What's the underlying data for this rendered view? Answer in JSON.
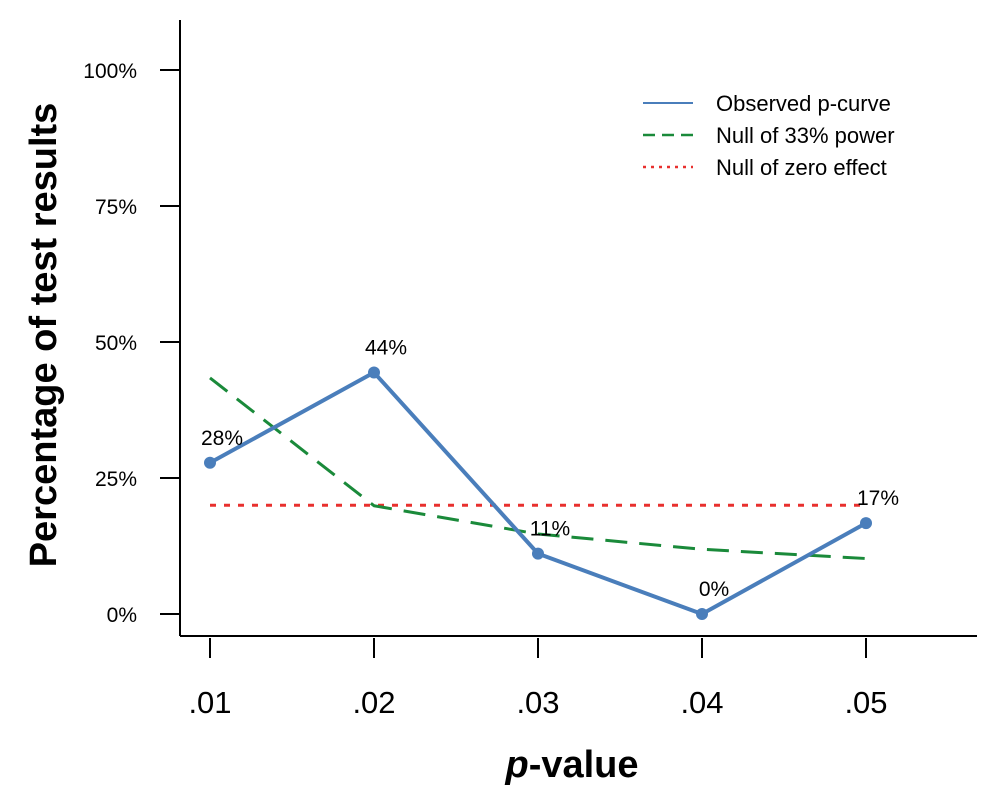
{
  "chart_data": {
    "type": "line",
    "title": "",
    "xlabel_italic": "p",
    "xlabel_rest": "-value",
    "ylabel": "Percentage of test results",
    "x": [
      0.01,
      0.02,
      0.03,
      0.04,
      0.05
    ],
    "x_tick_labels": [
      ".01",
      ".02",
      ".03",
      ".04",
      ".05"
    ],
    "y_ticks": [
      0,
      25,
      50,
      75,
      100
    ],
    "y_tick_labels": [
      "0%",
      "25%",
      "50%",
      "75%",
      "100%"
    ],
    "ylim": [
      0,
      100
    ],
    "grid": false,
    "legend_position": "top-right",
    "series": [
      {
        "name": "Observed p-curve",
        "color": "#4a7ebb",
        "style": "solid",
        "markers": true,
        "values": [
          27.8,
          44.4,
          11.1,
          0,
          16.7
        ],
        "data_labels": [
          "28%",
          "44%",
          "11%",
          "0%",
          "17%"
        ]
      },
      {
        "name": "Null of 33% power",
        "color": "#1a8a3a",
        "style": "dashed",
        "markers": false,
        "values": [
          43.4,
          19.9,
          14.7,
          11.9,
          10.2
        ]
      },
      {
        "name": "Null of zero effect",
        "color": "#e8302e",
        "style": "dotted",
        "markers": false,
        "values": [
          20,
          20,
          20,
          20,
          20
        ]
      }
    ]
  }
}
